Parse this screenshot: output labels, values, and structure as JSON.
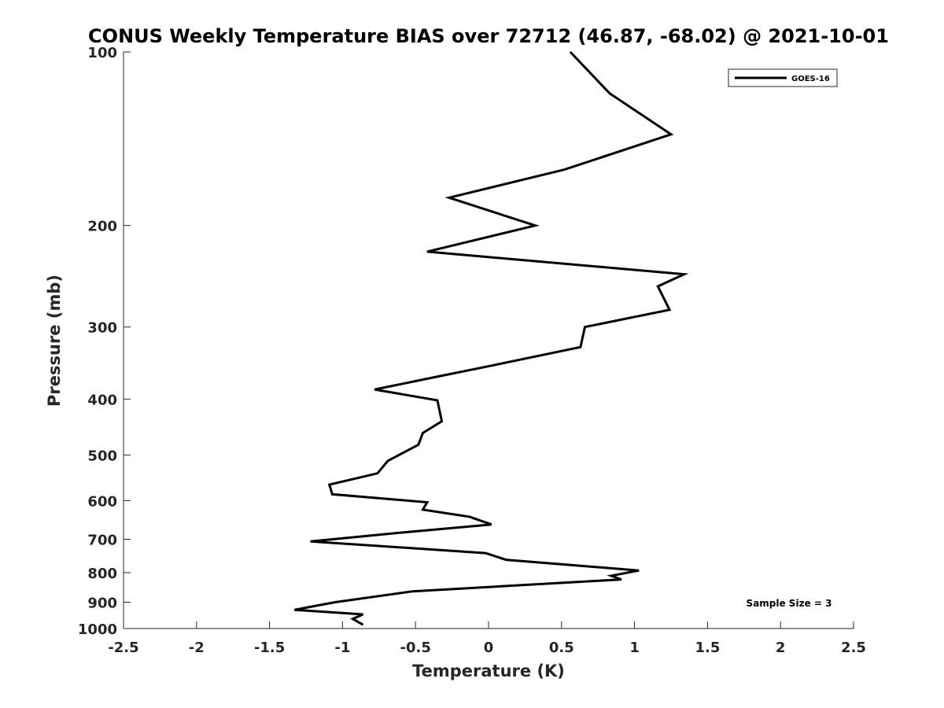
{
  "chart_data": {
    "type": "line",
    "title": "CONUS Weekly Temperature BIAS over 72712 (46.87, -68.02) @ 2021-10-01",
    "xlabel": "Temperature (K)",
    "ylabel": "Pressure (mb)",
    "xlim": [
      -2.5,
      2.5
    ],
    "ylim": [
      100,
      1000
    ],
    "y_scale": "log",
    "y_reversed": true,
    "x_ticks": [
      "-2.5",
      "-2",
      "-1.5",
      "-1",
      "-0.5",
      "0",
      "0.5",
      "1",
      "1.5",
      "2",
      "2.5"
    ],
    "y_ticks": [
      "100",
      "200",
      "300",
      "400",
      "500",
      "600",
      "700",
      "800",
      "900",
      "1000"
    ],
    "grid": false,
    "legend_position": "top-right",
    "sample_size_text": "Sample Size = 3",
    "series": [
      {
        "name": "GOES-16",
        "color": "#000000",
        "x": [
          0.56,
          0.83,
          1.25,
          0.52,
          -0.27,
          0.32,
          -0.42,
          1.34,
          1.16,
          1.24,
          0.66,
          0.63,
          0.02,
          -0.38,
          -0.78,
          -0.35,
          -0.32,
          -0.45,
          -0.48,
          -0.69,
          -0.76,
          -1.09,
          -1.07,
          -0.42,
          -0.45,
          -0.13,
          0.02,
          -0.55,
          -1.22,
          -0.02,
          0.12,
          1.03,
          0.84,
          0.91,
          -0.52,
          -1.05,
          -1.33,
          -0.86,
          -0.93,
          -0.86
        ],
        "y": [
          100,
          118,
          139,
          160,
          179,
          200,
          222,
          243,
          255,
          280,
          300,
          325,
          350,
          367,
          385,
          402,
          437,
          458,
          480,
          512,
          538,
          563,
          585,
          604,
          622,
          640,
          660,
          680,
          706,
          740,
          760,
          793,
          810,
          822,
          862,
          900,
          928,
          945,
          962,
          985
        ]
      }
    ]
  }
}
